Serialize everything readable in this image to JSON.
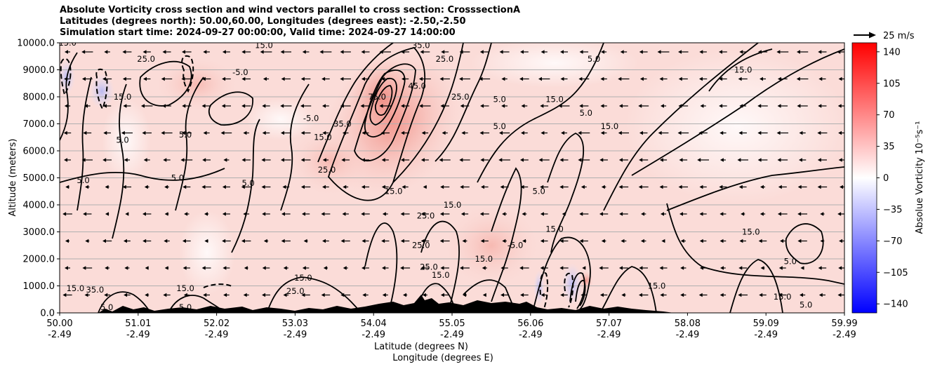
{
  "title_lines": [
    "Absolute Vorticity cross section and wind vectors parallel to cross section: CrosssectionA",
    "Latitudes (degrees north): 50.00,60.00, Longitudes (degrees east): -2.50,-2.50",
    "Simulation start time: 2024-09-27 00:00:00, Valid time: 2024-09-27 14:00:00"
  ],
  "chart_data": {
    "type": "heatmap",
    "title": "Absolute Vorticity cross section and wind vectors parallel to cross section: CrosssectionA",
    "ylabel": "Altitude (meters)",
    "xlabel_lines": [
      "Latitude (degrees N)",
      "Longitude (degrees E)"
    ],
    "ylim": [
      0,
      10000
    ],
    "xlim": [
      50.0,
      59.99
    ],
    "y_ticks": [
      "0.0",
      "1000.0",
      "2000.0",
      "3000.0",
      "4000.0",
      "5000.0",
      "6000.0",
      "7000.0",
      "8000.0",
      "9000.0",
      "10000.0"
    ],
    "x_ticks": [
      {
        "lat": "50.00",
        "lon": "-2.49"
      },
      {
        "lat": "51.01",
        "lon": "-2.49"
      },
      {
        "lat": "52.02",
        "lon": "-2.49"
      },
      {
        "lat": "53.03",
        "lon": "-2.49"
      },
      {
        "lat": "54.04",
        "lon": "-2.49"
      },
      {
        "lat": "55.05",
        "lon": "-2.49"
      },
      {
        "lat": "56.06",
        "lon": "-2.49"
      },
      {
        "lat": "57.07",
        "lon": "-2.49"
      },
      {
        "lat": "58.08",
        "lon": "-2.49"
      },
      {
        "lat": "59.09",
        "lon": "-2.49"
      },
      {
        "lat": "59.99",
        "lon": "-2.49"
      }
    ],
    "grid": "horizontal",
    "colorbar": {
      "label": "Absolue Vorticity 10⁻⁵s⁻¹",
      "range": [
        -150,
        150
      ],
      "ticks": [
        "140",
        "105",
        "70",
        "35",
        "0",
        "−35",
        "−70",
        "−105",
        "−140"
      ],
      "colors": [
        "#0000ff",
        "#ffffff",
        "#ff0000"
      ]
    },
    "quiver_key": "25 m/s",
    "contour_labels": [
      {
        "text": "75.0",
        "lat": 54.04,
        "alt": 7900
      },
      {
        "text": "45.0",
        "lat": 54.55,
        "alt": 8300
      },
      {
        "text": "35.0",
        "lat": 53.6,
        "alt": 6900
      },
      {
        "text": "35.0",
        "lat": 54.6,
        "alt": 9800
      },
      {
        "text": "25.0",
        "lat": 54.9,
        "alt": 9300
      },
      {
        "text": "25.0",
        "lat": 55.1,
        "alt": 7900
      },
      {
        "text": "25.0",
        "lat": 53.4,
        "alt": 5200
      },
      {
        "text": "15.0",
        "lat": 53.35,
        "alt": 6400
      },
      {
        "text": "5.0",
        "lat": 55.6,
        "alt": 7800
      },
      {
        "text": "5.0",
        "lat": 55.6,
        "alt": 6800
      },
      {
        "text": "15.0",
        "lat": 56.3,
        "alt": 7800
      },
      {
        "text": "5.0",
        "lat": 56.7,
        "alt": 7300
      },
      {
        "text": "15.0",
        "lat": 57.0,
        "alt": 6800
      },
      {
        "text": "5.0",
        "lat": 56.8,
        "alt": 9300
      },
      {
        "text": "15.0",
        "lat": 58.7,
        "alt": 8900
      },
      {
        "text": "15.0",
        "lat": 58.8,
        "alt": 2900
      },
      {
        "text": "5.0",
        "lat": 59.3,
        "alt": 1800
      },
      {
        "text": "15.0",
        "lat": 54.25,
        "alt": 4400
      },
      {
        "text": "25.0",
        "lat": 54.66,
        "alt": 3500
      },
      {
        "text": "25.0",
        "lat": 54.6,
        "alt": 2400
      },
      {
        "text": "25.0",
        "lat": 54.7,
        "alt": 1600
      },
      {
        "text": "15.0",
        "lat": 54.85,
        "alt": 1300
      },
      {
        "text": "15.0",
        "lat": 53.1,
        "alt": 1200
      },
      {
        "text": "-5.0",
        "lat": 53.2,
        "alt": 7100
      },
      {
        "text": "-5.0",
        "lat": 52.3,
        "alt": 8800
      },
      {
        "text": "-5.0",
        "lat": 55.8,
        "alt": 2400
      },
      {
        "text": "15.0",
        "lat": 50.1,
        "alt": 9900
      },
      {
        "text": "15.0",
        "lat": 52.6,
        "alt": 9800
      },
      {
        "text": "25.0",
        "lat": 51.1,
        "alt": 9300
      },
      {
        "text": "15.0",
        "lat": 50.8,
        "alt": 7900
      },
      {
        "text": "5.0",
        "lat": 51.6,
        "alt": 6500
      },
      {
        "text": "5.0",
        "lat": 50.8,
        "alt": 6300
      },
      {
        "text": "5.0",
        "lat": 50.3,
        "alt": 4800
      },
      {
        "text": "5.0",
        "lat": 51.5,
        "alt": 4900
      },
      {
        "text": "5.0",
        "lat": 52.4,
        "alt": 4700
      },
      {
        "text": "15.0",
        "lat": 51.6,
        "alt": 800
      },
      {
        "text": "15.0",
        "lat": 50.2,
        "alt": 800
      },
      {
        "text": "35.0",
        "lat": 50.45,
        "alt": 750
      },
      {
        "text": "5.0",
        "lat": 50.6,
        "alt": 100
      },
      {
        "text": "5.0",
        "lat": 51.6,
        "alt": 100
      },
      {
        "text": "15.0",
        "lat": 55.0,
        "alt": 3900
      },
      {
        "text": "15.0",
        "lat": 55.4,
        "alt": 1900
      },
      {
        "text": "15.0",
        "lat": 56.3,
        "alt": 3000
      },
      {
        "text": "15.0",
        "lat": 57.6,
        "alt": 900
      },
      {
        "text": "5.0",
        "lat": 59.5,
        "alt": 200
      },
      {
        "text": "15.0",
        "lat": 59.2,
        "alt": 500
      },
      {
        "text": "25.0",
        "lat": 53.0,
        "alt": 700
      },
      {
        "text": "5.0",
        "lat": 56.1,
        "alt": 4400
      }
    ]
  }
}
